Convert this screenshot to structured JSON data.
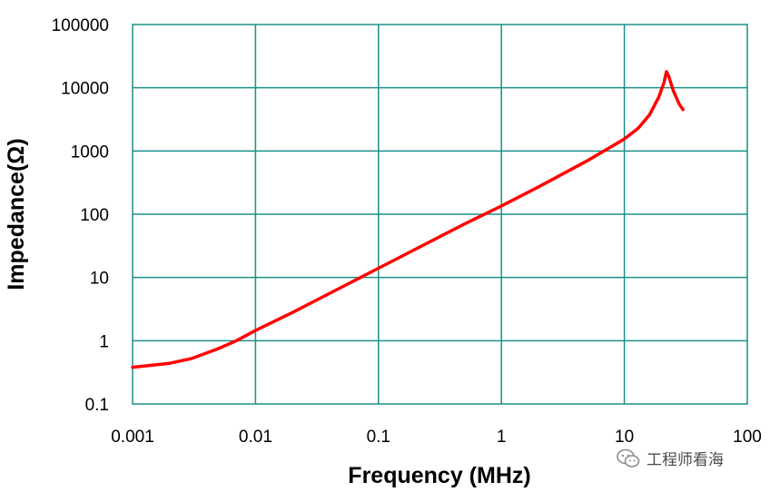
{
  "chart_data": {
    "type": "line",
    "xlabel": "Frequency (MHz)",
    "ylabel": "Impedance(Ω)",
    "x_scale": "log",
    "y_scale": "log",
    "xlim": [
      0.001,
      100
    ],
    "ylim": [
      0.1,
      100000
    ],
    "x_ticks": [
      "0.001",
      "0.01",
      "0.1",
      "1",
      "10",
      "100"
    ],
    "y_ticks": [
      "0.1",
      "1",
      "10",
      "100",
      "1000",
      "10000",
      "100000"
    ],
    "grid": true,
    "legend": "none",
    "colors": {
      "grid": "#1a8f8a",
      "line": "#ff0000",
      "frame": "#1a8f8a"
    },
    "series": [
      {
        "x": [
          0.001,
          0.002,
          0.003,
          0.005,
          0.007,
          0.01,
          0.02,
          0.05,
          0.1,
          0.2,
          0.5,
          1,
          2,
          5,
          10,
          13,
          16,
          19,
          21,
          22,
          23,
          25,
          28,
          30
        ],
        "y": [
          0.38,
          0.44,
          0.52,
          0.75,
          1.0,
          1.45,
          2.8,
          7,
          14,
          28,
          70,
          135,
          270,
          700,
          1550,
          2300,
          3700,
          7000,
          12000,
          18000,
          15000,
          9000,
          5500,
          4500
        ]
      }
    ]
  },
  "watermark": {
    "text": "工程师看海",
    "icon": "wechat-icon"
  }
}
